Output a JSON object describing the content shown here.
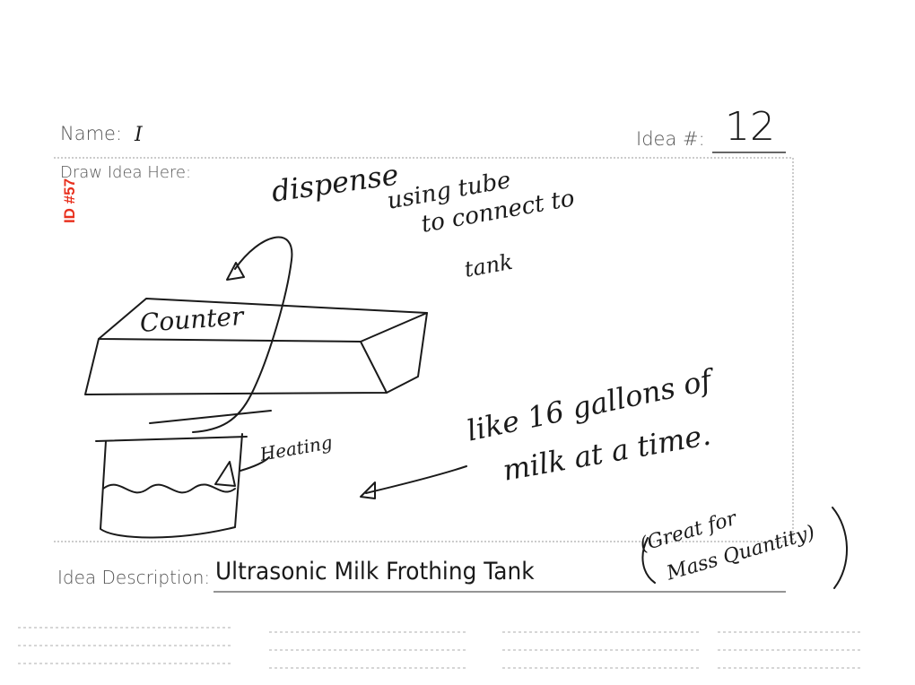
{
  "form": {
    "name_label": "Name:",
    "name_value": "I",
    "idea_number_label": "Idea #:",
    "idea_number_value": "12",
    "draw_label": "Draw Idea Here:",
    "description_label": "Idea Description:",
    "description_value": "Ultrasonic Milk Frothing Tank",
    "description_note_line1": "(Great for",
    "description_note_line2": "Mass Quantity)"
  },
  "stamp": {
    "text": "ID #57",
    "color": "#e8301e"
  },
  "sketch": {
    "dispense_note": "dispense",
    "tube_note_line1": "using tube",
    "tube_note_line2": "to connect to",
    "tube_note_line3": "tank",
    "counter_label": "Counter",
    "heating_label": "Heating",
    "capacity_line1": "like 16 gallons of",
    "capacity_line2": "milk at a time."
  }
}
